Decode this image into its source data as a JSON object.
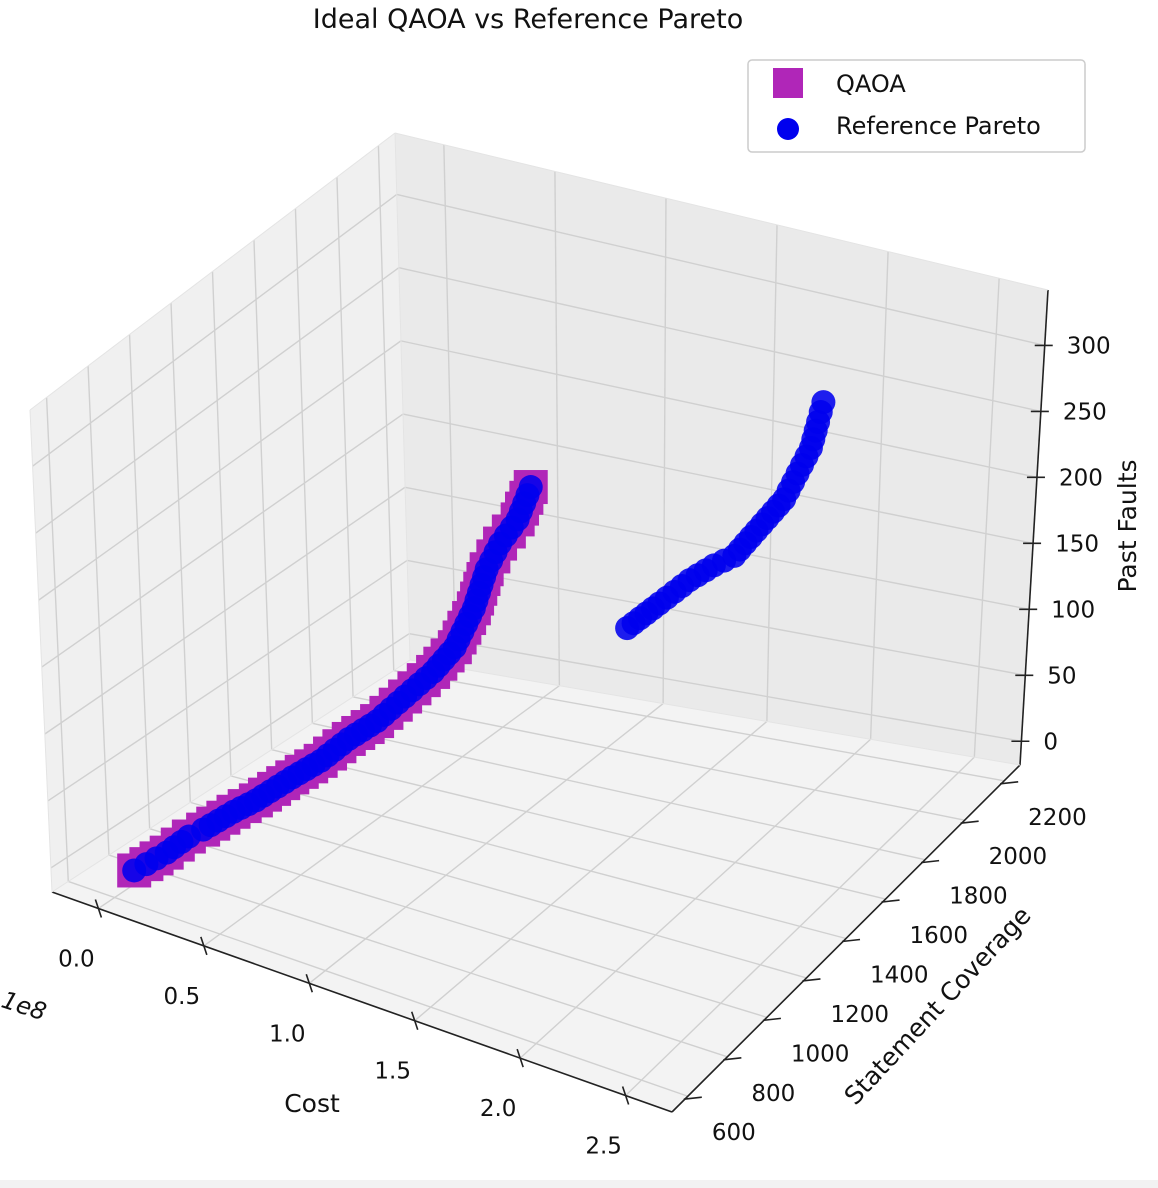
{
  "chart_data": {
    "type": "scatter",
    "projection": "3d",
    "title": "Ideal QAOA vs Reference Pareto",
    "xlabel": "Cost",
    "ylabel": "Statement Coverage",
    "zlabel": "Past Faults",
    "x_offset_label": "1e8",
    "xlim": [
      0.0,
      2.5
    ],
    "ylim": [
      600,
      2200
    ],
    "zlim": [
      0,
      300
    ],
    "x_ticks": [
      "0.0",
      "0.5",
      "1.0",
      "1.5",
      "2.0",
      "2.5"
    ],
    "y_ticks": [
      "600",
      "800",
      "1000",
      "1200",
      "1400",
      "1600",
      "1800",
      "2000",
      "2200"
    ],
    "z_ticks": [
      "0",
      "50",
      "100",
      "150",
      "200",
      "250",
      "300"
    ],
    "grid": true,
    "legend_position": "top-right",
    "colors": {
      "qaoa": "#b026b8",
      "reference": "#0000ee"
    },
    "series": [
      {
        "name": "QAOA",
        "marker": "square",
        "color": "#b026b8",
        "points": [
          [
            0.08,
            620,
            5
          ],
          [
            0.12,
            640,
            10
          ],
          [
            0.18,
            680,
            18
          ],
          [
            0.25,
            720,
            30
          ],
          [
            0.3,
            740,
            36
          ],
          [
            0.4,
            790,
            50
          ],
          [
            0.48,
            820,
            60
          ],
          [
            0.6,
            880,
            78
          ],
          [
            0.7,
            920,
            92
          ],
          [
            0.8,
            960,
            110
          ],
          [
            0.9,
            1000,
            125
          ],
          [
            1.0,
            1040,
            145
          ],
          [
            1.1,
            1080,
            165
          ],
          [
            1.18,
            1110,
            185
          ],
          [
            1.25,
            1140,
            215
          ],
          [
            1.3,
            1160,
            245
          ],
          [
            1.35,
            1180,
            265
          ],
          [
            1.42,
            1200,
            285
          ],
          [
            1.47,
            1220,
            310
          ]
        ]
      },
      {
        "name": "Reference Pareto",
        "marker": "circle",
        "color": "#0000ee",
        "points": [
          [
            0.08,
            620,
            5
          ],
          [
            0.12,
            640,
            10
          ],
          [
            0.18,
            680,
            18
          ],
          [
            0.25,
            720,
            30
          ],
          [
            0.3,
            740,
            36
          ],
          [
            0.4,
            790,
            50
          ],
          [
            0.48,
            820,
            60
          ],
          [
            0.6,
            880,
            78
          ],
          [
            0.7,
            920,
            92
          ],
          [
            0.8,
            960,
            110
          ],
          [
            0.9,
            1000,
            125
          ],
          [
            1.0,
            1040,
            145
          ],
          [
            1.1,
            1080,
            165
          ],
          [
            1.18,
            1110,
            185
          ],
          [
            1.25,
            1140,
            215
          ],
          [
            1.3,
            1160,
            245
          ],
          [
            1.35,
            1180,
            265
          ],
          [
            1.42,
            1200,
            285
          ],
          [
            1.47,
            1220,
            310
          ],
          [
            1.52,
            1600,
            170
          ],
          [
            1.6,
            1680,
            185
          ],
          [
            1.68,
            1750,
            200
          ],
          [
            1.75,
            1800,
            210
          ],
          [
            1.8,
            1850,
            215
          ],
          [
            1.75,
            2150,
            225
          ],
          [
            1.8,
            2170,
            245
          ],
          [
            1.85,
            2190,
            265
          ],
          [
            1.88,
            2200,
            285
          ],
          [
            1.9,
            2210,
            300
          ]
        ]
      }
    ]
  }
}
